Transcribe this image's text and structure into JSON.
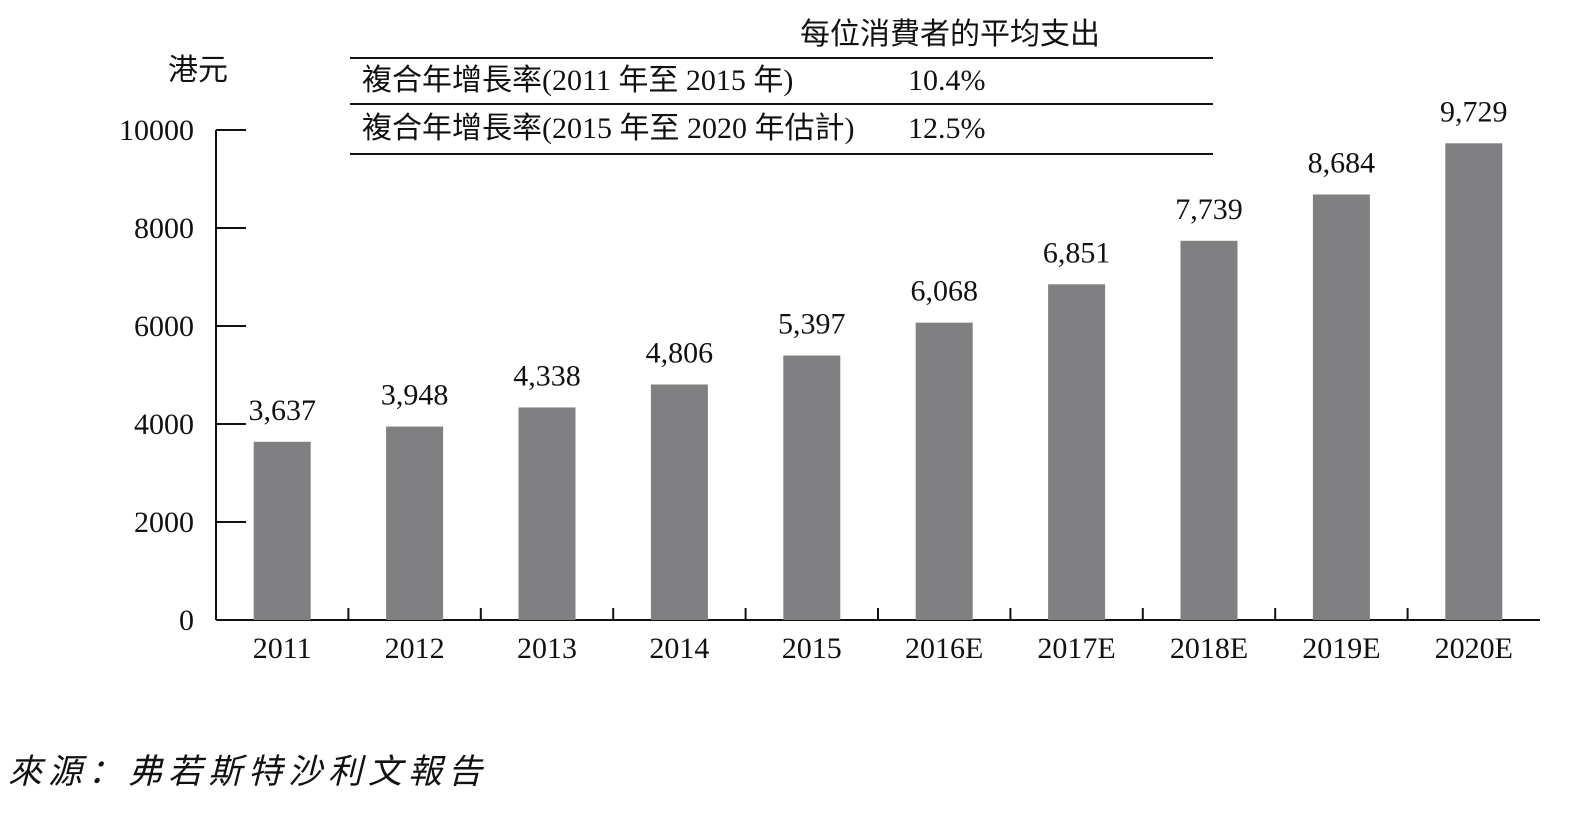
{
  "chart_data": {
    "type": "bar",
    "title": "每位消費者的平均支出",
    "ylabel": "港元",
    "xlabel": "",
    "categories": [
      "2011",
      "2012",
      "2013",
      "2014",
      "2015",
      "2016E",
      "2017E",
      "2018E",
      "2019E",
      "2020E"
    ],
    "values": [
      3637,
      3948,
      4338,
      4806,
      5397,
      6068,
      6851,
      7739,
      8684,
      9729
    ],
    "value_labels": [
      "3,637",
      "3,948",
      "4,338",
      "4,806",
      "5,397",
      "6,068",
      "6,851",
      "7,739",
      "8,684",
      "9,729"
    ],
    "ylim": [
      0,
      10000
    ],
    "yticks": [
      "0",
      "2000",
      "4000",
      "6000",
      "8000",
      "10000"
    ],
    "bar_color": "#808083",
    "grid": false,
    "cagr_table": [
      {
        "label": "複合年增長率(2011 年至 2015 年)",
        "value": "10.4%"
      },
      {
        "label": "複合年增長率(2015 年至 2020 年估計)",
        "value": "12.5%"
      }
    ]
  },
  "source": "來源：弗若斯特沙利文報告"
}
